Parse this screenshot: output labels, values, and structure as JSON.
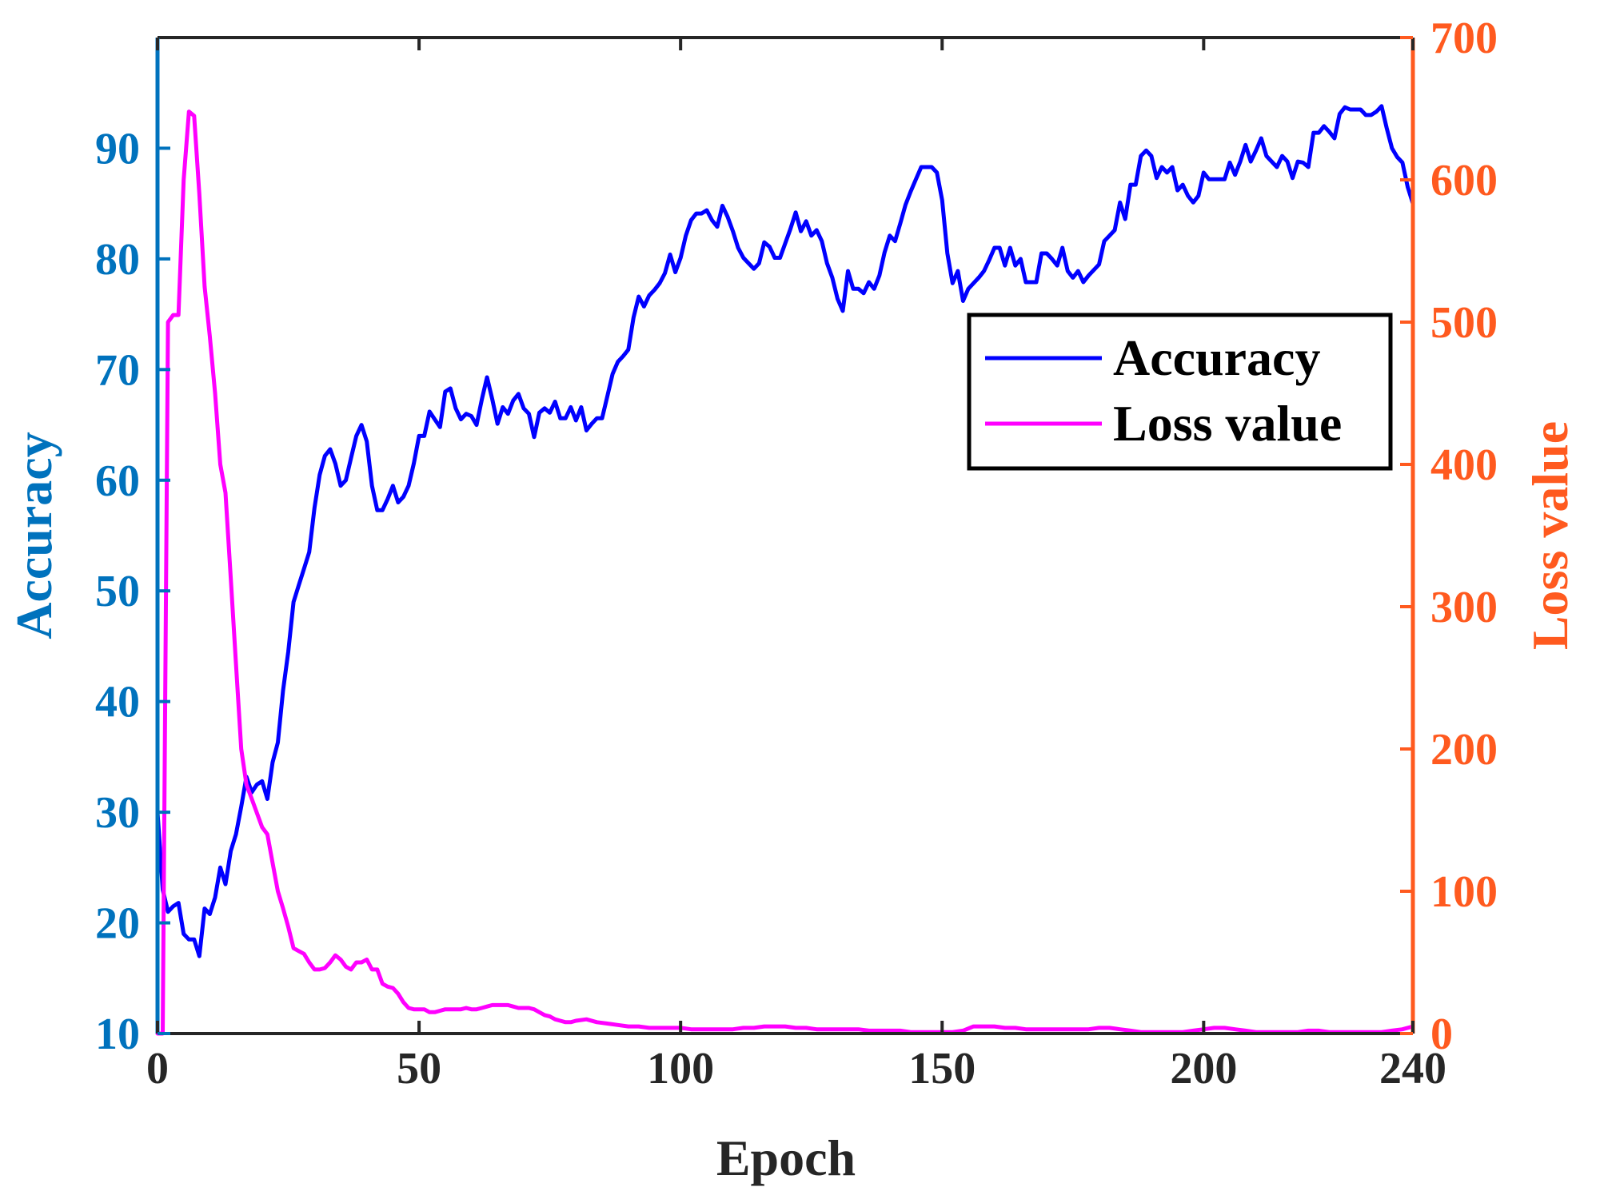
{
  "chart_data": {
    "type": "line",
    "title": "",
    "xlabel": "Epoch",
    "ylabel_left": "Accuracy",
    "ylabel_right": "Loss value",
    "xlim": [
      0,
      240
    ],
    "ylim_left": [
      10,
      100
    ],
    "ylim_right": [
      0,
      700
    ],
    "xticks": [
      "0",
      "50",
      "100",
      "150",
      "200",
      "240"
    ],
    "yticks_left": [
      "10",
      "20",
      "30",
      "40",
      "50",
      "60",
      "70",
      "80",
      "90"
    ],
    "yticks_right": [
      "0",
      "100",
      "200",
      "300",
      "400",
      "500",
      "600",
      "700"
    ],
    "grid": false,
    "legend_position": "upper-right",
    "colors": {
      "left_axis": "#0072BD",
      "right_axis": "#FF5A1F",
      "accuracy": "#0000FF",
      "loss": "#FF00FF"
    },
    "series": [
      {
        "name": "Accuracy",
        "axis": "left",
        "x": [
          0,
          1,
          2,
          3,
          4,
          5,
          6,
          7,
          8,
          9,
          10,
          11,
          12,
          13,
          14,
          15,
          16,
          17,
          18,
          19,
          20,
          21,
          22,
          23,
          24,
          25,
          26,
          27,
          28,
          29,
          30,
          31,
          32,
          33,
          34,
          35,
          36,
          37,
          38,
          39,
          40,
          41,
          42,
          43,
          44,
          45,
          46,
          47,
          48,
          49,
          50,
          51,
          52,
          53,
          54,
          55,
          56,
          57,
          58,
          59,
          60,
          61,
          62,
          63,
          64,
          65,
          66,
          67,
          68,
          69,
          70,
          71,
          72,
          73,
          74,
          75,
          76,
          77,
          78,
          79,
          80,
          81,
          82,
          83,
          84,
          85,
          86,
          87,
          88,
          89,
          90,
          91,
          92,
          93,
          94,
          95,
          96,
          97,
          98,
          99,
          100,
          101,
          102,
          103,
          104,
          105,
          106,
          107,
          108,
          109,
          110,
          111,
          112,
          113,
          114,
          115,
          116,
          117,
          118,
          119,
          120,
          121,
          122,
          123,
          124,
          125,
          126,
          127,
          128,
          129,
          130,
          131,
          132,
          133,
          134,
          135,
          136,
          137,
          138,
          139,
          140,
          141,
          142,
          143,
          144,
          145,
          146,
          147,
          148,
          149,
          150,
          151,
          152,
          153,
          154,
          155,
          156,
          157,
          158,
          159,
          160,
          161,
          162,
          163,
          164,
          165,
          166,
          167,
          168,
          169,
          170,
          171,
          172,
          173,
          174,
          175,
          176,
          177,
          178,
          179,
          180,
          181,
          182,
          183,
          184,
          185,
          186,
          187,
          188,
          189,
          190,
          191,
          192,
          193,
          194,
          195,
          196,
          197,
          198,
          199,
          200,
          201,
          202,
          203,
          204,
          205,
          206,
          207,
          208,
          209,
          210,
          211,
          212,
          213,
          214,
          215,
          216,
          217,
          218,
          219,
          220,
          221,
          222,
          223,
          224,
          225,
          226,
          227,
          228,
          229,
          230,
          231,
          232,
          233,
          234,
          235,
          236,
          237,
          238,
          239,
          240
        ],
        "values": [
          30,
          23,
          21,
          21.5,
          21.8,
          19,
          18.5,
          18.5,
          17,
          21.3,
          20.8,
          22.3,
          25,
          23.5,
          26.5,
          28,
          30.5,
          33.2,
          31.8,
          32.5,
          32.8,
          31.2,
          34.5,
          36.3,
          41,
          44.5,
          49,
          50.5,
          52,
          53.5,
          57.5,
          60.5,
          62.2,
          62.8,
          61.5,
          59.5,
          60,
          62,
          64,
          65,
          63.5,
          59.5,
          57.3,
          57.3,
          58.3,
          59.5,
          58,
          58.5,
          59.5,
          61.5,
          64,
          64,
          66.2,
          65.5,
          64.8,
          68,
          68.3,
          66.5,
          65.5,
          66,
          65.8,
          65,
          67.3,
          69.3,
          67.3,
          65.1,
          66.6,
          66,
          67.2,
          67.8,
          66.5,
          66,
          63.9,
          66.1,
          66.5,
          66.1,
          67.1,
          65.6,
          65.6,
          66.6,
          65.4,
          66.6,
          64.5,
          65.1,
          65.6,
          65.6,
          67.6,
          69.6,
          70.7,
          71.2,
          71.8,
          74.7,
          76.6,
          75.7,
          76.7,
          77.2,
          77.8,
          78.7,
          80.4,
          78.8,
          80.1,
          82.1,
          83.5,
          84.1,
          84.1,
          84.4,
          83.5,
          82.9,
          84.8,
          83.8,
          82.5,
          81,
          80.1,
          79.6,
          79.1,
          79.6,
          81.5,
          81.1,
          80.1,
          80.1,
          81.4,
          82.7,
          84.2,
          82.5,
          83.4,
          82.1,
          82.6,
          81.6,
          79.6,
          78.3,
          76.4,
          75.3,
          78.9,
          77.3,
          77.3,
          76.9,
          77.9,
          77.3,
          78.5,
          80.6,
          82.1,
          81.6,
          83.2,
          84.9,
          86.1,
          87.2,
          88.3,
          88.3,
          88.3,
          87.8,
          85.3,
          80.5,
          77.8,
          78.9,
          76.2,
          77.3,
          77.8,
          78.3,
          78.9,
          79.9,
          81,
          81,
          79.4,
          81,
          79.4,
          80,
          77.9,
          77.9,
          77.9,
          80.5,
          80.5,
          80,
          79.4,
          81,
          78.9,
          78.3,
          78.9,
          77.9,
          78.5,
          79,
          79.5,
          81.6,
          82.1,
          82.6,
          85.1,
          83.6,
          86.7,
          86.7,
          89.3,
          89.8,
          89.3,
          87.3,
          88.3,
          87.8,
          88.3,
          86.2,
          86.7,
          85.7,
          85.1,
          85.7,
          87.8,
          87.2,
          87.2,
          87.2,
          87.2,
          88.7,
          87.6,
          88.8,
          90.3,
          88.8,
          89.8,
          90.9,
          89.3,
          88.8,
          88.3,
          89.3,
          88.8,
          87.3,
          88.8,
          88.7,
          88.3,
          91.4,
          91.4,
          92,
          91.5,
          90.9,
          93.1,
          93.7,
          93.5,
          93.5,
          93.5,
          93,
          93,
          93.3,
          93.8,
          91.8,
          90,
          89.2,
          88.7,
          86.5,
          85
        ]
      },
      {
        "name": "Loss value",
        "axis": "right",
        "x": [
          0,
          1,
          2,
          3,
          4,
          5,
          6,
          7,
          8,
          9,
          10,
          11,
          12,
          13,
          14,
          15,
          16,
          17,
          18,
          19,
          20,
          21,
          22,
          23,
          24,
          25,
          26,
          27,
          28,
          29,
          30,
          31,
          32,
          33,
          34,
          35,
          36,
          37,
          38,
          39,
          40,
          41,
          42,
          43,
          44,
          45,
          46,
          47,
          48,
          49,
          50,
          51,
          52,
          53,
          54,
          55,
          56,
          57,
          58,
          59,
          60,
          61,
          62,
          63,
          64,
          65,
          66,
          67,
          68,
          69,
          70,
          71,
          72,
          73,
          74,
          75,
          76,
          77,
          78,
          79,
          80,
          82,
          84,
          86,
          88,
          90,
          92,
          94,
          96,
          98,
          100,
          102,
          104,
          106,
          108,
          110,
          112,
          114,
          116,
          118,
          120,
          122,
          124,
          126,
          128,
          130,
          132,
          134,
          136,
          138,
          140,
          142,
          144,
          146,
          148,
          150,
          151,
          152,
          154,
          156,
          158,
          160,
          162,
          164,
          166,
          168,
          170,
          172,
          174,
          176,
          178,
          180,
          182,
          184,
          186,
          188,
          190,
          192,
          194,
          196,
          198,
          200,
          202,
          204,
          206,
          208,
          210,
          212,
          214,
          216,
          218,
          220,
          222,
          224,
          226,
          228,
          230,
          232,
          234,
          236,
          238,
          240
        ],
        "values": [
          0,
          0,
          500,
          505,
          505,
          600,
          648,
          645,
          590,
          525,
          490,
          450,
          400,
          380,
          320,
          260,
          200,
          175,
          165,
          155,
          145,
          140,
          120,
          100,
          88,
          75,
          60,
          58,
          56,
          50,
          45,
          45,
          46,
          50,
          55,
          52,
          47,
          45,
          50,
          50,
          52,
          45,
          45,
          35,
          33,
          32,
          28,
          22,
          18,
          17,
          17,
          17,
          15,
          15,
          16,
          17,
          17,
          17,
          17,
          18,
          17,
          17,
          18,
          19,
          20,
          20,
          20,
          20,
          19,
          18,
          18,
          18,
          17,
          15,
          13,
          12,
          10,
          9,
          8,
          8,
          9,
          10,
          8,
          7,
          6,
          5,
          5,
          4,
          4,
          4,
          4,
          3,
          3,
          3,
          3,
          3,
          4,
          4,
          5,
          5,
          5,
          4,
          4,
          3,
          3,
          3,
          3,
          3,
          2,
          2,
          2,
          2,
          1,
          1,
          1,
          1,
          1,
          1,
          2,
          5,
          5,
          5,
          4,
          4,
          3,
          3,
          3,
          3,
          3,
          3,
          3,
          4,
          4,
          3,
          2,
          1,
          1,
          1,
          1,
          1,
          2,
          3,
          4,
          4,
          3,
          2,
          1,
          1,
          1,
          1,
          1,
          2,
          2,
          1,
          1,
          1,
          1,
          1,
          1,
          2,
          3,
          5
        ]
      }
    ]
  }
}
